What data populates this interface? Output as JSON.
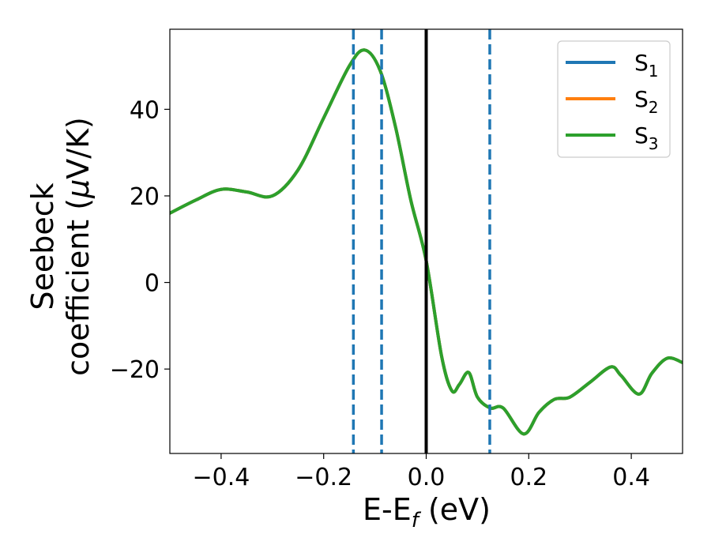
{
  "chart_data": {
    "type": "line",
    "title": "",
    "xlabel": {
      "main": "E-E",
      "sub": "f",
      "unit": " (eV)"
    },
    "ylabel": {
      "line1": "Seebeck",
      "line2_prefix": "coefficient  (",
      "line2_mu": "μ",
      "line2_suffix": "V/K)"
    },
    "xlim": [
      -0.5,
      0.5
    ],
    "ylim": [
      -39.5,
      58.5
    ],
    "xticks": [
      -0.4,
      -0.2,
      0.0,
      0.2,
      0.4
    ],
    "xtick_labels": [
      "−0.4",
      "−0.2",
      "0.0",
      "0.2",
      "0.4"
    ],
    "yticks": [
      -20,
      0,
      20,
      40
    ],
    "ytick_labels": [
      "−20",
      "0",
      "20",
      "40"
    ],
    "grid": false,
    "legend_position": "top-right",
    "x": [
      -0.5,
      -0.45,
      -0.4,
      -0.35,
      -0.3,
      -0.25,
      -0.2,
      -0.15,
      -0.12,
      -0.09,
      -0.06,
      -0.03,
      0.0,
      0.03,
      0.05,
      0.065,
      0.083,
      0.1,
      0.125,
      0.15,
      0.19,
      0.22,
      0.25,
      0.28,
      0.32,
      0.36,
      0.38,
      0.415,
      0.44,
      0.47,
      0.5
    ],
    "series": [
      {
        "name": "S",
        "name_sub": "1",
        "color": "#1f77b4",
        "values": [
          16,
          19,
          21.5,
          20.9,
          20,
          26,
          38,
          50,
          53.7,
          49,
          36,
          19,
          5,
          -17,
          -25,
          -23.5,
          -20.8,
          -26.5,
          -29,
          -29,
          -35,
          -30,
          -27,
          -26.5,
          -23,
          -19.5,
          -21.5,
          -25.8,
          -21,
          -17.5,
          -18.5
        ]
      },
      {
        "name": "S",
        "name_sub": "2",
        "color": "#ff7f0e",
        "values": [
          16,
          19,
          21.5,
          20.9,
          20,
          26,
          38,
          50,
          53.7,
          49,
          36,
          19,
          5,
          -17,
          -25,
          -23.5,
          -20.8,
          -26.5,
          -29,
          -29,
          -35,
          -30,
          -27,
          -26.5,
          -23,
          -19.5,
          -21.5,
          -25.8,
          -21,
          -17.5,
          -18.5
        ]
      },
      {
        "name": "S",
        "name_sub": "3",
        "color": "#2ca02c",
        "values": [
          16,
          19,
          21.5,
          20.9,
          20,
          26,
          38,
          50,
          53.7,
          49,
          36,
          19,
          5,
          -17,
          -25,
          -23.5,
          -20.8,
          -26.5,
          -29,
          -29,
          -35,
          -30,
          -27,
          -26.5,
          -23,
          -19.5,
          -21.5,
          -25.8,
          -21,
          -17.5,
          -18.5
        ]
      }
    ],
    "vlines": [
      {
        "x": -0.142,
        "style": "dashed",
        "color": "#1f77b4"
      },
      {
        "x": -0.087,
        "style": "dashed",
        "color": "#1f77b4"
      },
      {
        "x": 0.0,
        "style": "solid",
        "color": "#000000"
      },
      {
        "x": 0.124,
        "style": "dashed",
        "color": "#1f77b4"
      }
    ]
  }
}
